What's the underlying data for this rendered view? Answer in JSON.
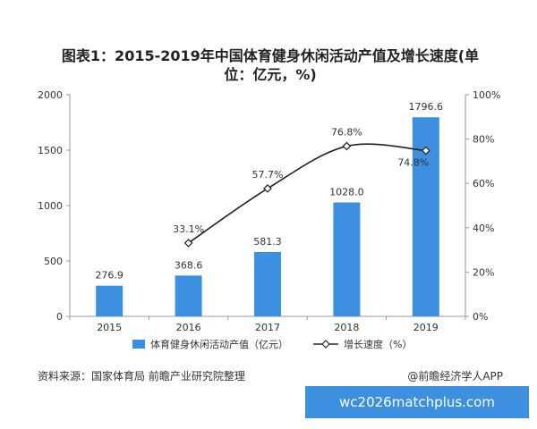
{
  "title": "图表1：2015-2019年中国体育健身休闲活动产值及增长速度(单位：亿元，%)",
  "chart_data": {
    "type": "bar",
    "categories": [
      "2015",
      "2016",
      "2017",
      "2018",
      "2019"
    ],
    "series": [
      {
        "name": "体育健身休闲活动产值（亿元）",
        "type": "bar",
        "axis": "left",
        "values": [
          276.9,
          368.6,
          581.3,
          1028.0,
          1796.6
        ],
        "labels": [
          "276.9",
          "368.6",
          "581.3",
          "1028.0",
          "1796.6"
        ],
        "color": "#3d8fe0"
      },
      {
        "name": "增长速度（%）",
        "type": "line",
        "axis": "right",
        "values": [
          null,
          33.1,
          57.7,
          76.8,
          74.8
        ],
        "labels": [
          "",
          "33.1%",
          "57.7%",
          "76.8%",
          "74.8%"
        ],
        "color": "#222222"
      }
    ],
    "y_left": {
      "min": 0,
      "max": 2000,
      "ticks": [
        "0",
        "500",
        "1000",
        "1500",
        "2000"
      ]
    },
    "y_right": {
      "min": 0,
      "max": 100,
      "ticks": [
        "0%",
        "20%",
        "40%",
        "60%",
        "80%",
        "100%"
      ]
    },
    "grid": false,
    "legend_position": "bottom"
  },
  "footer": {
    "source": "资料来源：国家体育局 前瞻产业研究院整理",
    "brand": "@前瞻经济学人APP"
  },
  "watermark_url": "wc2026matchplus.com"
}
